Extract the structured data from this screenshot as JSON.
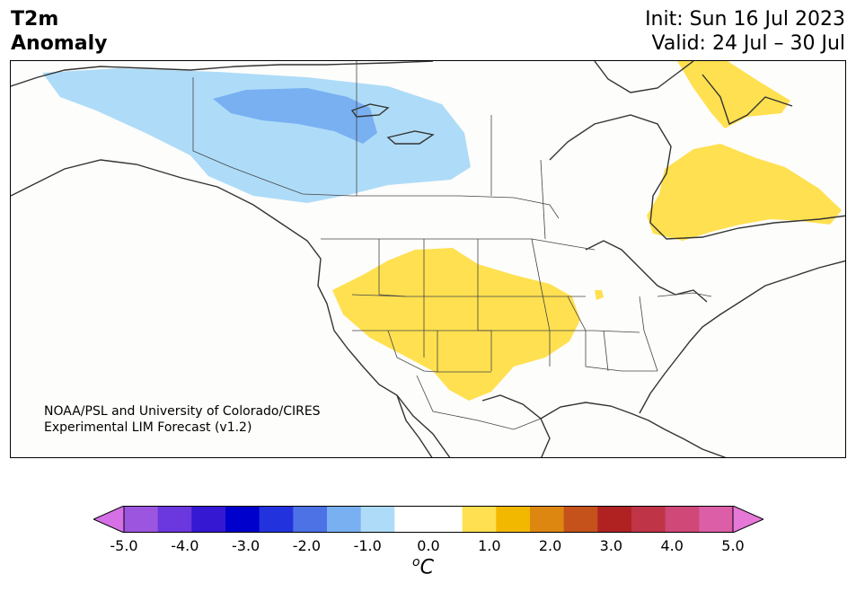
{
  "header": {
    "title_line1": "T2m",
    "title_line2": "Anomaly",
    "init": "Init: Sun 16 Jul 2023",
    "valid": "Valid: 24 Jul – 30 Jul"
  },
  "credit": {
    "line1": "NOAA/PSL and University of Colorado/CIRES",
    "line2": "Experimental LIM Forecast (v1.2)"
  },
  "colorbar": {
    "units_symbol": "o",
    "units_letter": "C",
    "colors": [
      "#d670e6",
      "#9c55de",
      "#6a38de",
      "#3418d2",
      "#0000cc",
      "#2233dd",
      "#4c72e6",
      "#78b0f2",
      "#aedcf8",
      "#ffffff",
      "#ffffff",
      "#ffe050",
      "#f2b800",
      "#dd8610",
      "#c4521a",
      "#b02222",
      "#c03448",
      "#d04878",
      "#dc5ea6",
      "#e678d8"
    ],
    "tick_labels": [
      "-5.0",
      "-4.0",
      "-3.0",
      "-2.0",
      "-1.0",
      "0.0",
      "1.0",
      "2.0",
      "3.0",
      "4.0",
      "5.0"
    ]
  },
  "anomaly_regions": {
    "canada_northwest": {
      "anomaly_range_c": "-1.0 to -0.5",
      "color": "#aedcf8"
    },
    "canada_northwest_core": {
      "anomaly_range_c": "-1.5 to -1.0",
      "color": "#78b0f2"
    },
    "us_west_central_plains": {
      "anomaly_range_c": "0.5 to 1.0",
      "color": "#ffe050"
    },
    "eastern_canada_quebec": {
      "anomaly_range_c": "0.5 to 1.0",
      "color": "#ffe050"
    },
    "greenland_baffin": {
      "anomaly_range_c": "0.5 to 1.0",
      "color": "#ffe050"
    }
  }
}
